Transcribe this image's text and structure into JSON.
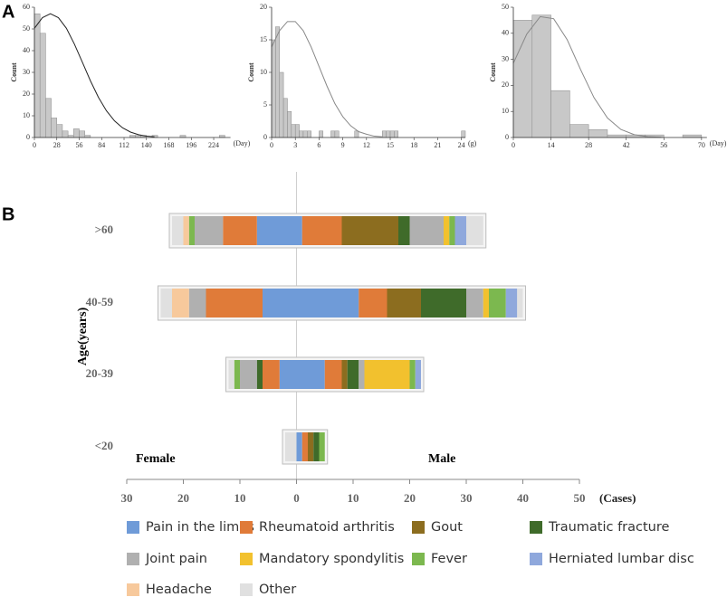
{
  "panel_labels": [
    "A",
    "B"
  ],
  "chart_data": [
    {
      "type": "histogram",
      "ylabel": "Count",
      "xunit": "(Day)",
      "color": "#c8c8c8",
      "bins": [
        0,
        7,
        14,
        21,
        28,
        35,
        42,
        49,
        56,
        63,
        70,
        77,
        84,
        91,
        98,
        105,
        112,
        119,
        126,
        133,
        140,
        147,
        154,
        161,
        168,
        175,
        182,
        189,
        196,
        203,
        210,
        217,
        224,
        231,
        238,
        245
      ],
      "counts": [
        57,
        48,
        18,
        9,
        6,
        3,
        1,
        4,
        3,
        1,
        0,
        0,
        0,
        0,
        0,
        0,
        0,
        1,
        1,
        1,
        0,
        1,
        0,
        0,
        0,
        0,
        1,
        0,
        0,
        0,
        0,
        0,
        0,
        1,
        0
      ],
      "curve": {
        "color": "#222222",
        "x": [
          0,
          10,
          20,
          30,
          40,
          50,
          60,
          70,
          80,
          90,
          100,
          110,
          120,
          130,
          140,
          150
        ],
        "values": [
          50.3,
          55.2,
          57,
          55.2,
          50.3,
          43.0,
          34.6,
          26.1,
          18.5,
          12.3,
          7.7,
          4.5,
          2.5,
          1.3,
          0.6,
          0.3
        ]
      },
      "xlim": [
        0,
        245
      ],
      "xticks": [
        0,
        28,
        56,
        84,
        112,
        140,
        168,
        196,
        224
      ],
      "ylim": [
        0,
        60
      ],
      "yticks": [
        0,
        10,
        20,
        30,
        40,
        50,
        60
      ]
    },
    {
      "type": "histogram",
      "ylabel": "Count",
      "xunit": "(g)",
      "color": "#c8c8c8",
      "bins": [
        0,
        0.5,
        1,
        1.5,
        2,
        2.5,
        3,
        3.5,
        4,
        4.5,
        5,
        5.5,
        6,
        6.5,
        7,
        7.5,
        8,
        8.5,
        9,
        9.5,
        10,
        10.5,
        11,
        11.5,
        12,
        12.5,
        13,
        13.5,
        14,
        14.5,
        15,
        15.5,
        16,
        16.5,
        17,
        17.5,
        18,
        18.5,
        19,
        19.5,
        20,
        20.5,
        21,
        21.5,
        22,
        22.5,
        23,
        23.5,
        24,
        24.5
      ],
      "counts": [
        15,
        17,
        10,
        6,
        4,
        2,
        2,
        1,
        1,
        1,
        0,
        0,
        1,
        0,
        0,
        1,
        1,
        0,
        0,
        0,
        0,
        1,
        0,
        0,
        0,
        0,
        0,
        0,
        1,
        1,
        1,
        1,
        0,
        0,
        0,
        0,
        0,
        0,
        0,
        0,
        0,
        0,
        0,
        0,
        0,
        0,
        0,
        0,
        1
      ],
      "curve": {
        "color": "#888888",
        "x": [
          0,
          1,
          2,
          3,
          4,
          5,
          6,
          7,
          8,
          9,
          10,
          11,
          12,
          13,
          14
        ],
        "values": [
          13.9,
          16.4,
          17.8,
          17.8,
          16.4,
          13.9,
          10.9,
          7.9,
          5.2,
          3.2,
          1.8,
          0.9,
          0.5,
          0.2,
          0.1
        ]
      },
      "xlim": [
        0,
        24.5
      ],
      "xticks": [
        0,
        3,
        6,
        9,
        12,
        15,
        18,
        21,
        24
      ],
      "ylim": [
        0,
        20
      ],
      "yticks": [
        0,
        5,
        10,
        15,
        20
      ]
    },
    {
      "type": "histogram",
      "ylabel": "Count",
      "xunit": "(Day)",
      "color": "#c8c8c8",
      "bins": [
        0,
        7,
        14,
        21,
        28,
        35,
        42,
        49,
        56,
        63,
        70
      ],
      "counts": [
        45,
        47,
        18,
        5,
        3,
        1,
        1,
        1,
        0,
        1
      ],
      "curve": {
        "color": "#888888",
        "x": [
          0,
          5,
          10,
          15,
          20,
          25,
          30,
          35,
          40,
          45,
          50,
          55
        ],
        "values": [
          28.5,
          39.7,
          46.4,
          45.6,
          37.6,
          26.1,
          15.3,
          7.5,
          3.1,
          1.1,
          0.3,
          0.1
        ]
      },
      "xlim": [
        0,
        72
      ],
      "xticks": [
        0,
        14,
        28,
        42,
        56,
        70
      ],
      "ylim": [
        0,
        50
      ],
      "yticks": [
        0,
        10,
        20,
        30,
        40,
        50
      ]
    },
    {
      "type": "diverging-bar",
      "ylabel": "Age(years)",
      "xlabel": "(Cases)",
      "left_label": "Female",
      "right_label": "Male",
      "categories": [
        ">60",
        "40-59",
        "20-39",
        "<20"
      ],
      "xlim": [
        -30,
        50
      ],
      "xticks": [
        {
          "value": -30,
          "label": "30"
        },
        {
          "value": -20,
          "label": "20"
        },
        {
          "value": -10,
          "label": "10"
        },
        0,
        10,
        20,
        30,
        40,
        50
      ],
      "series": [
        {
          "name": "Pain in the limbs",
          "color": "#6f9bd8",
          "female": [
            7,
            6,
            3,
            0
          ],
          "male": [
            1,
            11,
            5,
            1
          ]
        },
        {
          "name": "Rheumatoid arthritis",
          "color": "#e07b39",
          "female": [
            6,
            10,
            3,
            0
          ],
          "male": [
            7,
            5,
            3,
            1
          ]
        },
        {
          "name": "Gout",
          "color": "#8c6d1f",
          "female": [
            0,
            0,
            0,
            0
          ],
          "male": [
            10,
            6,
            1,
            1
          ]
        },
        {
          "name": "Traumatic fracture",
          "color": "#3f6b2a",
          "female": [
            0,
            0,
            1,
            0
          ],
          "male": [
            2,
            8,
            2,
            1
          ]
        },
        {
          "name": "Joint pain",
          "color": "#b0b0b0",
          "female": [
            5,
            3,
            3,
            0
          ],
          "male": [
            6,
            3,
            1,
            0
          ]
        },
        {
          "name": "Mandatory spondylitis",
          "color": "#f2c12e",
          "female": [
            0,
            0,
            0,
            0
          ],
          "male": [
            1,
            1,
            8,
            0
          ]
        },
        {
          "name": "Fever",
          "color": "#7cb84f",
          "female": [
            1,
            0,
            1,
            0
          ],
          "male": [
            1,
            3,
            1,
            1
          ]
        },
        {
          "name": "Herniated lumbar disc",
          "color": "#8fa8dc",
          "female": [
            0,
            0,
            0,
            0
          ],
          "male": [
            2,
            2,
            1,
            0
          ]
        },
        {
          "name": "Headache",
          "color": "#f7c99c",
          "female": [
            1,
            3,
            0,
            0
          ],
          "male": [
            0,
            0,
            0,
            0
          ]
        },
        {
          "name": "Other",
          "color": "#e0e0e0",
          "female": [
            2,
            2,
            1,
            2
          ],
          "male": [
            3,
            1,
            0,
            0
          ]
        }
      ]
    }
  ]
}
